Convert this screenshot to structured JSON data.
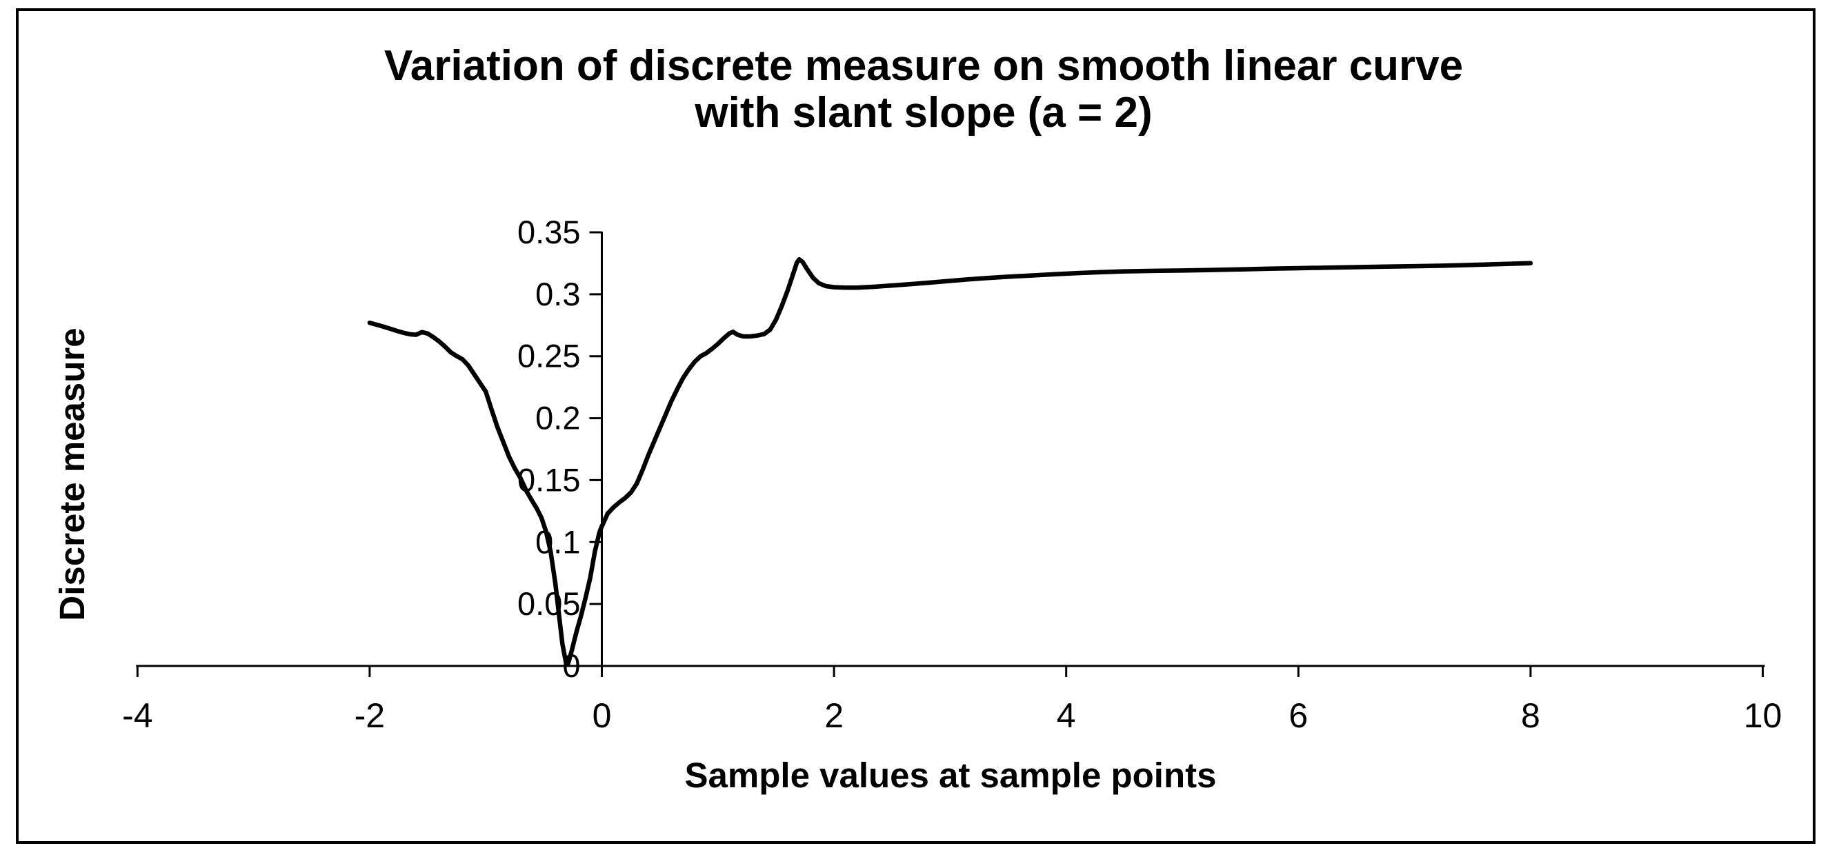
{
  "chart_data": {
    "type": "line",
    "title": "Variation of discrete measure on smooth linear curve with slant slope (a = 2)",
    "title_line1": "Variation of discrete measure on smooth linear curve",
    "title_line2": "with slant slope (a = 2)",
    "xlabel": "Sample values at sample points",
    "ylabel": "Discrete measure",
    "xlim": [
      -4,
      10
    ],
    "ylim": [
      0,
      0.35
    ],
    "x_ticks": [
      -4,
      -2,
      0,
      2,
      4,
      6,
      8,
      10
    ],
    "x_tick_labels": [
      "-4",
      "-2",
      "0",
      "2",
      "4",
      "6",
      "8",
      "10"
    ],
    "y_ticks": [
      0,
      0.05,
      0.1,
      0.15,
      0.2,
      0.25,
      0.3,
      0.35
    ],
    "y_tick_labels": [
      "0",
      "0.05",
      "0.1",
      "0.15",
      "0.2",
      "0.25",
      "0.3",
      "0.35"
    ],
    "grid": false,
    "legend": false,
    "line_color": "#000000",
    "axis_color": "#000000",
    "background_color": "#ffffff",
    "series": [
      {
        "name": "Discrete measure",
        "points": [
          [
            -2.0,
            0.277
          ],
          [
            -1.95,
            0.2757
          ],
          [
            -1.9,
            0.2744
          ],
          [
            -1.85,
            0.273
          ],
          [
            -1.8,
            0.2715
          ],
          [
            -1.75,
            0.27
          ],
          [
            -1.7,
            0.2687
          ],
          [
            -1.65,
            0.2677
          ],
          [
            -1.6,
            0.2673
          ],
          [
            -1.55,
            0.2695
          ],
          [
            -1.5,
            0.2683
          ],
          [
            -1.45,
            0.2653
          ],
          [
            -1.4,
            0.2618
          ],
          [
            -1.35,
            0.2577
          ],
          [
            -1.3,
            0.2531
          ],
          [
            -1.25,
            0.2501
          ],
          [
            -1.2,
            0.2475
          ],
          [
            -1.15,
            0.2425
          ],
          [
            -1.1,
            0.2355
          ],
          [
            -1.05,
            0.2285
          ],
          [
            -1.0,
            0.2215
          ],
          [
            -0.95,
            0.207
          ],
          [
            -0.9,
            0.193
          ],
          [
            -0.85,
            0.181
          ],
          [
            -0.8,
            0.169
          ],
          [
            -0.75,
            0.1595
          ],
          [
            -0.7,
            0.1514
          ],
          [
            -0.65,
            0.1413
          ],
          [
            -0.6,
            0.1332
          ],
          [
            -0.56,
            0.127
          ],
          [
            -0.52,
            0.1196
          ],
          [
            -0.48,
            0.1084
          ],
          [
            -0.44,
            0.0919
          ],
          [
            -0.4,
            0.0662
          ],
          [
            -0.37,
            0.0422
          ],
          [
            -0.34,
            0.018
          ],
          [
            -0.31,
            0.0032
          ],
          [
            -0.29,
            0.002
          ],
          [
            -0.26,
            0.012
          ],
          [
            -0.22,
            0.0271
          ],
          [
            -0.18,
            0.0403
          ],
          [
            -0.14,
            0.055
          ],
          [
            -0.1,
            0.0713
          ],
          [
            -0.06,
            0.0923
          ],
          [
            -0.02,
            0.108
          ],
          [
            0.0,
            0.1127
          ],
          [
            0.05,
            0.123
          ],
          [
            0.1,
            0.128
          ],
          [
            0.15,
            0.132
          ],
          [
            0.2,
            0.1355
          ],
          [
            0.25,
            0.14
          ],
          [
            0.3,
            0.147
          ],
          [
            0.35,
            0.158
          ],
          [
            0.4,
            0.17
          ],
          [
            0.45,
            0.181
          ],
          [
            0.5,
            0.192
          ],
          [
            0.55,
            0.203
          ],
          [
            0.6,
            0.214
          ],
          [
            0.65,
            0.2235
          ],
          [
            0.7,
            0.2325
          ],
          [
            0.75,
            0.2395
          ],
          [
            0.8,
            0.2455
          ],
          [
            0.85,
            0.25
          ],
          [
            0.9,
            0.2525
          ],
          [
            0.95,
            0.256
          ],
          [
            1.0,
            0.26
          ],
          [
            1.05,
            0.2645
          ],
          [
            1.1,
            0.2685
          ],
          [
            1.13,
            0.2697
          ],
          [
            1.17,
            0.2673
          ],
          [
            1.22,
            0.266
          ],
          [
            1.28,
            0.266
          ],
          [
            1.34,
            0.2667
          ],
          [
            1.4,
            0.268
          ],
          [
            1.45,
            0.2715
          ],
          [
            1.5,
            0.2795
          ],
          [
            1.55,
            0.2905
          ],
          [
            1.6,
            0.303
          ],
          [
            1.65,
            0.317
          ],
          [
            1.68,
            0.3255
          ],
          [
            1.7,
            0.3282
          ],
          [
            1.73,
            0.326
          ],
          [
            1.77,
            0.32
          ],
          [
            1.82,
            0.3132
          ],
          [
            1.87,
            0.3089
          ],
          [
            1.93,
            0.3066
          ],
          [
            2.0,
            0.3057
          ],
          [
            2.1,
            0.3053
          ],
          [
            2.2,
            0.3054
          ],
          [
            2.35,
            0.3061
          ],
          [
            2.5,
            0.3071
          ],
          [
            2.7,
            0.3085
          ],
          [
            2.9,
            0.31
          ],
          [
            3.1,
            0.3116
          ],
          [
            3.3,
            0.313
          ],
          [
            3.5,
            0.3142
          ],
          [
            3.7,
            0.3152
          ],
          [
            3.9,
            0.3162
          ],
          [
            4.1,
            0.3171
          ],
          [
            4.3,
            0.3179
          ],
          [
            4.5,
            0.3185
          ],
          [
            4.75,
            0.3189
          ],
          [
            5.0,
            0.3192
          ],
          [
            5.25,
            0.3196
          ],
          [
            5.5,
            0.3201
          ],
          [
            5.75,
            0.3206
          ],
          [
            6.0,
            0.3211
          ],
          [
            6.25,
            0.3215
          ],
          [
            6.5,
            0.3219
          ],
          [
            6.75,
            0.3223
          ],
          [
            7.0,
            0.3227
          ],
          [
            7.25,
            0.3231
          ],
          [
            7.5,
            0.3237
          ],
          [
            7.75,
            0.3244
          ],
          [
            8.0,
            0.3251
          ]
        ]
      }
    ]
  }
}
